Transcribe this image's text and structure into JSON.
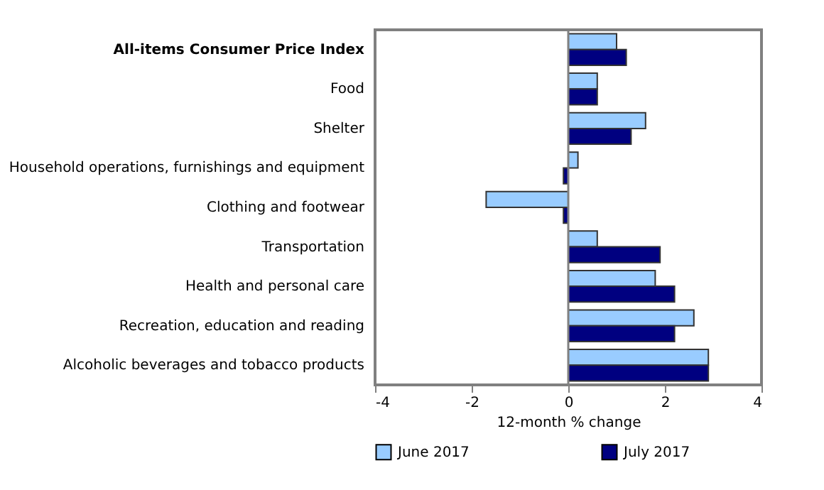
{
  "chart_data": {
    "type": "bar",
    "orientation": "horizontal",
    "xlabel": "12-month % change",
    "categories": [
      "All-items Consumer Price Index",
      "Food",
      "Shelter",
      "Household operations, furnishings and equipment",
      "Clothing and footwear",
      "Transportation",
      "Health and personal care",
      "Recreation, education and reading",
      "Alcoholic beverages and tobacco products"
    ],
    "series": [
      {
        "name": "June 2017",
        "color": "#99ccff",
        "values": [
          1.0,
          0.6,
          1.6,
          0.2,
          -1.7,
          0.6,
          1.8,
          2.6,
          2.9
        ]
      },
      {
        "name": "July 2017",
        "color": "#000080",
        "values": [
          1.2,
          0.6,
          1.3,
          -0.1,
          -0.1,
          1.9,
          2.2,
          2.2,
          2.9
        ]
      }
    ],
    "xlim": [
      -4,
      4
    ],
    "xticks": [
      -4,
      -2,
      0,
      2,
      4
    ],
    "ref_lines": [
      {
        "axis": "x",
        "value": 0,
        "color": "#808080"
      }
    ],
    "legend": "bottom"
  }
}
